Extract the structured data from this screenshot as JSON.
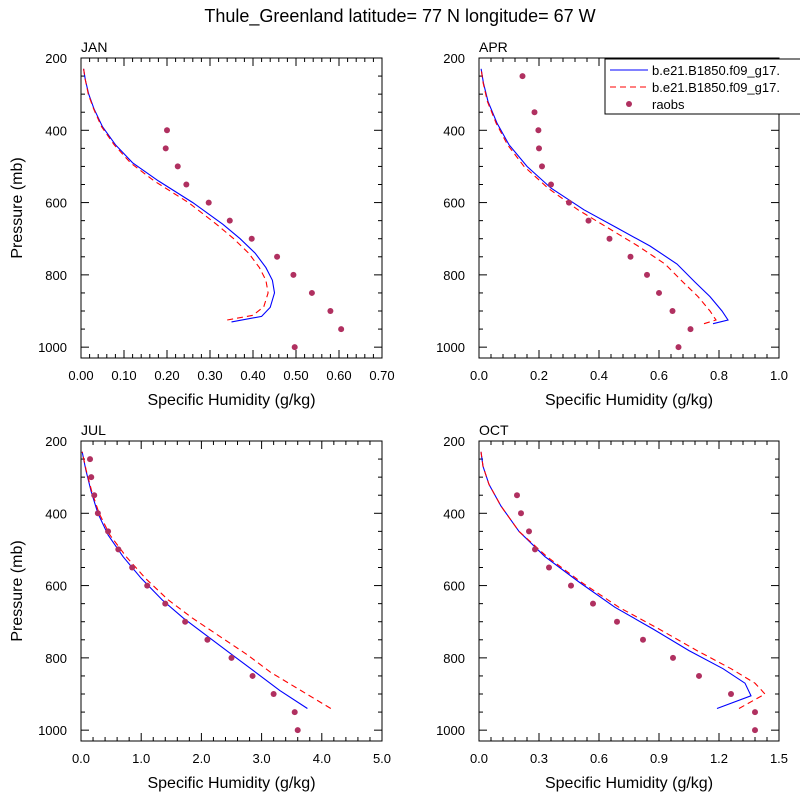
{
  "figure": {
    "title": "Thule_Greenland  latitude= 77 N longitude= 67 W"
  },
  "legend": {
    "entries": [
      {
        "label": "b.e21.B1850.f09_g17.",
        "style": "solid",
        "color": "#0000ff"
      },
      {
        "label": "b.e21.B1850.f09_g17.",
        "style": "dashed",
        "color": "#ff0000"
      },
      {
        "label": "raobs",
        "style": "marker",
        "color": "#b03060"
      }
    ]
  },
  "colors": {
    "model_solid": "#0000ff",
    "model_dashed": "#ff0000",
    "raobs": "#b03060"
  },
  "chart_data": [
    {
      "type": "line",
      "panel": "JAN",
      "xlabel": "Specific Humidity (g/kg)",
      "ylabel": "Pressure (mb)",
      "xlim": [
        0,
        0.7
      ],
      "ylim": [
        200,
        1030
      ],
      "y_inverted": true,
      "xticks": [
        "0.00",
        "0.10",
        "0.20",
        "0.30",
        "0.40",
        "0.50",
        "0.60",
        "0.70"
      ],
      "yticks": [
        "200",
        "400",
        "600",
        "800",
        "1000"
      ],
      "series": [
        {
          "style": "solid",
          "color": "#0000ff",
          "x": [
            0.35,
            0.42,
            0.44,
            0.45,
            0.445,
            0.43,
            0.405,
            0.37,
            0.33,
            0.26,
            0.18,
            0.12,
            0.08,
            0.05,
            0.03,
            0.018,
            0.01,
            0.006
          ],
          "y": [
            930,
            915,
            890,
            850,
            815,
            780,
            740,
            700,
            660,
            600,
            540,
            490,
            440,
            390,
            340,
            300,
            260,
            230
          ]
        },
        {
          "style": "dashed",
          "color": "#ff0000",
          "x": [
            0.34,
            0.4,
            0.425,
            0.435,
            0.43,
            0.415,
            0.39,
            0.355,
            0.315,
            0.25,
            0.17,
            0.115,
            0.077,
            0.048,
            0.029,
            0.017,
            0.01,
            0.006
          ],
          "y": [
            925,
            912,
            888,
            850,
            815,
            780,
            740,
            700,
            660,
            600,
            540,
            490,
            440,
            390,
            340,
            300,
            260,
            230
          ]
        },
        {
          "style": "marker",
          "color": "#b03060",
          "x": [
            0.2,
            0.197,
            0.225,
            0.245,
            0.297,
            0.346,
            0.397,
            0.456,
            0.494,
            0.537,
            0.58,
            0.605,
            0.497
          ],
          "y": [
            400,
            450,
            500,
            550,
            600,
            650,
            700,
            750,
            800,
            850,
            900,
            950,
            1000
          ]
        }
      ]
    },
    {
      "type": "line",
      "panel": "APR",
      "xlabel": "Specific Humidity (g/kg)",
      "ylabel": "",
      "xlim": [
        0,
        1.0
      ],
      "ylim": [
        200,
        1030
      ],
      "y_inverted": true,
      "xticks": [
        "0.0",
        "0.2",
        "0.4",
        "0.6",
        "0.8",
        "1.0"
      ],
      "yticks": [
        "200",
        "400",
        "600",
        "800",
        "1000"
      ],
      "series": [
        {
          "style": "solid",
          "color": "#0000ff",
          "x": [
            0.78,
            0.83,
            0.81,
            0.77,
            0.72,
            0.66,
            0.57,
            0.46,
            0.35,
            0.24,
            0.16,
            0.1,
            0.06,
            0.03,
            0.015,
            0.007
          ],
          "y": [
            935,
            925,
            900,
            860,
            820,
            770,
            720,
            670,
            620,
            560,
            500,
            440,
            380,
            320,
            270,
            230
          ]
        },
        {
          "style": "dashed",
          "color": "#ff0000",
          "x": [
            0.75,
            0.79,
            0.77,
            0.73,
            0.68,
            0.62,
            0.53,
            0.43,
            0.33,
            0.23,
            0.15,
            0.095,
            0.057,
            0.028,
            0.014,
            0.007
          ],
          "y": [
            935,
            925,
            900,
            860,
            820,
            770,
            720,
            670,
            620,
            560,
            500,
            440,
            380,
            320,
            270,
            230
          ]
        },
        {
          "style": "marker",
          "color": "#b03060",
          "x": [
            0.145,
            0.185,
            0.198,
            0.2,
            0.21,
            0.24,
            0.3,
            0.365,
            0.435,
            0.505,
            0.56,
            0.6,
            0.645,
            0.705,
            0.665
          ],
          "y": [
            250,
            350,
            400,
            450,
            500,
            550,
            600,
            650,
            700,
            750,
            800,
            850,
            900,
            950,
            1000
          ]
        }
      ]
    },
    {
      "type": "line",
      "panel": "JUL",
      "xlabel": "Specific Humidity (g/kg)",
      "ylabel": "Pressure (mb)",
      "xlim": [
        0,
        5.0
      ],
      "ylim": [
        200,
        1030
      ],
      "y_inverted": true,
      "xticks": [
        "0.0",
        "1.0",
        "2.0",
        "3.0",
        "4.0",
        "5.0"
      ],
      "yticks": [
        "200",
        "400",
        "600",
        "800",
        "1000"
      ],
      "series": [
        {
          "style": "solid",
          "color": "#0000ff",
          "x": [
            3.76,
            3.3,
            2.9,
            2.5,
            2.1,
            1.7,
            1.35,
            1.0,
            0.7,
            0.45,
            0.28,
            0.17,
            0.08,
            0.02
          ],
          "y": [
            940,
            890,
            840,
            790,
            740,
            690,
            640,
            580,
            520,
            460,
            400,
            340,
            280,
            230
          ]
        },
        {
          "style": "dashed",
          "color": "#ff0000",
          "x": [
            4.15,
            3.65,
            3.15,
            2.75,
            2.3,
            1.85,
            1.45,
            1.07,
            0.75,
            0.48,
            0.3,
            0.18,
            0.085,
            0.02
          ],
          "y": [
            940,
            890,
            840,
            790,
            740,
            690,
            640,
            580,
            520,
            460,
            400,
            340,
            280,
            230
          ]
        },
        {
          "style": "marker",
          "color": "#b03060",
          "x": [
            0.15,
            0.17,
            0.22,
            0.28,
            0.45,
            0.62,
            0.85,
            1.1,
            1.4,
            1.73,
            2.1,
            2.5,
            2.85,
            3.2,
            3.55,
            3.6
          ],
          "y": [
            250,
            300,
            350,
            400,
            450,
            500,
            550,
            600,
            650,
            700,
            750,
            800,
            850,
            900,
            950,
            1000
          ]
        }
      ]
    },
    {
      "type": "line",
      "panel": "OCT",
      "xlabel": "Specific Humidity (g/kg)",
      "ylabel": "",
      "xlim": [
        0,
        1.5
      ],
      "ylim": [
        200,
        1030
      ],
      "y_inverted": true,
      "xticks": [
        "0.0",
        "0.3",
        "0.6",
        "0.9",
        "1.2",
        "1.5"
      ],
      "yticks": [
        "200",
        "400",
        "600",
        "800",
        "1000"
      ],
      "series": [
        {
          "style": "solid",
          "color": "#0000ff",
          "x": [
            1.19,
            1.36,
            1.33,
            1.22,
            1.05,
            0.87,
            0.68,
            0.5,
            0.33,
            0.2,
            0.11,
            0.05,
            0.02,
            0.01
          ],
          "y": [
            940,
            905,
            870,
            830,
            780,
            720,
            660,
            590,
            520,
            450,
            380,
            320,
            270,
            230
          ]
        },
        {
          "style": "dashed",
          "color": "#ff0000",
          "x": [
            1.3,
            1.43,
            1.38,
            1.26,
            1.09,
            0.9,
            0.7,
            0.51,
            0.34,
            0.2,
            0.11,
            0.05,
            0.02,
            0.01
          ],
          "y": [
            940,
            900,
            870,
            830,
            780,
            720,
            660,
            590,
            520,
            450,
            380,
            320,
            270,
            230
          ]
        },
        {
          "style": "marker",
          "color": "#b03060",
          "x": [
            0.19,
            0.21,
            0.25,
            0.28,
            0.35,
            0.46,
            0.57,
            0.69,
            0.82,
            0.97,
            1.1,
            1.26,
            1.38,
            1.38
          ],
          "y": [
            350,
            400,
            450,
            500,
            550,
            600,
            650,
            700,
            750,
            800,
            850,
            900,
            950,
            1000
          ]
        }
      ]
    }
  ]
}
